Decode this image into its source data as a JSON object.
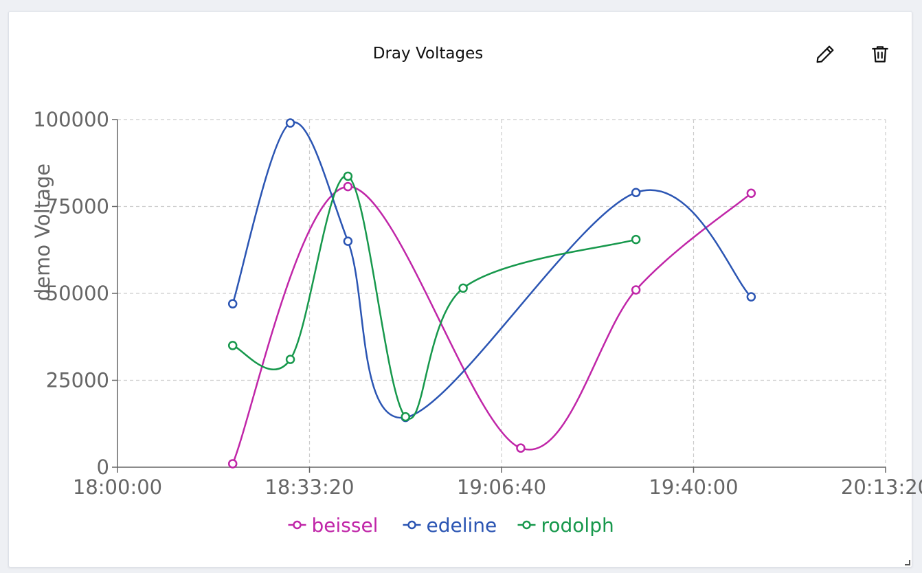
{
  "panel": {
    "title": "Dray Voltages",
    "edit_icon": "pencil-icon",
    "delete_icon": "trash-icon"
  },
  "chart_data": {
    "type": "line",
    "title": "Dray Voltages",
    "xlabel": "",
    "ylabel": "demo Voltage",
    "curve": "smooth",
    "grid": true,
    "legend_position": "bottom",
    "xlim": [
      "18:00:00",
      "20:13:20"
    ],
    "ylim": [
      0,
      100000
    ],
    "x_ticks": [
      "18:00:00",
      "18:33:20",
      "19:06:40",
      "19:40:00",
      "20:13:20"
    ],
    "y_ticks": [
      "0",
      "25000",
      "50000",
      "75000",
      "100000"
    ],
    "series": [
      {
        "name": "beissel",
        "color": "#c026a8",
        "x": [
          "18:20:00",
          "18:40:00",
          "19:10:00",
          "19:30:00",
          "19:50:00"
        ],
        "y": [
          1000,
          80700,
          5500,
          51000,
          78800
        ]
      },
      {
        "name": "edeline",
        "color": "#2b55b3",
        "x": [
          "18:20:00",
          "18:30:00",
          "18:40:00",
          "18:50:00",
          "19:30:00",
          "19:50:00"
        ],
        "y": [
          47000,
          99000,
          65000,
          14300,
          79000,
          49000
        ]
      },
      {
        "name": "rodolph",
        "color": "#17984c",
        "x": [
          "18:20:00",
          "18:30:00",
          "18:40:00",
          "18:50:00",
          "19:00:00",
          "19:30:00"
        ],
        "y": [
          35000,
          31000,
          83700,
          14500,
          51500,
          65500
        ]
      }
    ]
  }
}
